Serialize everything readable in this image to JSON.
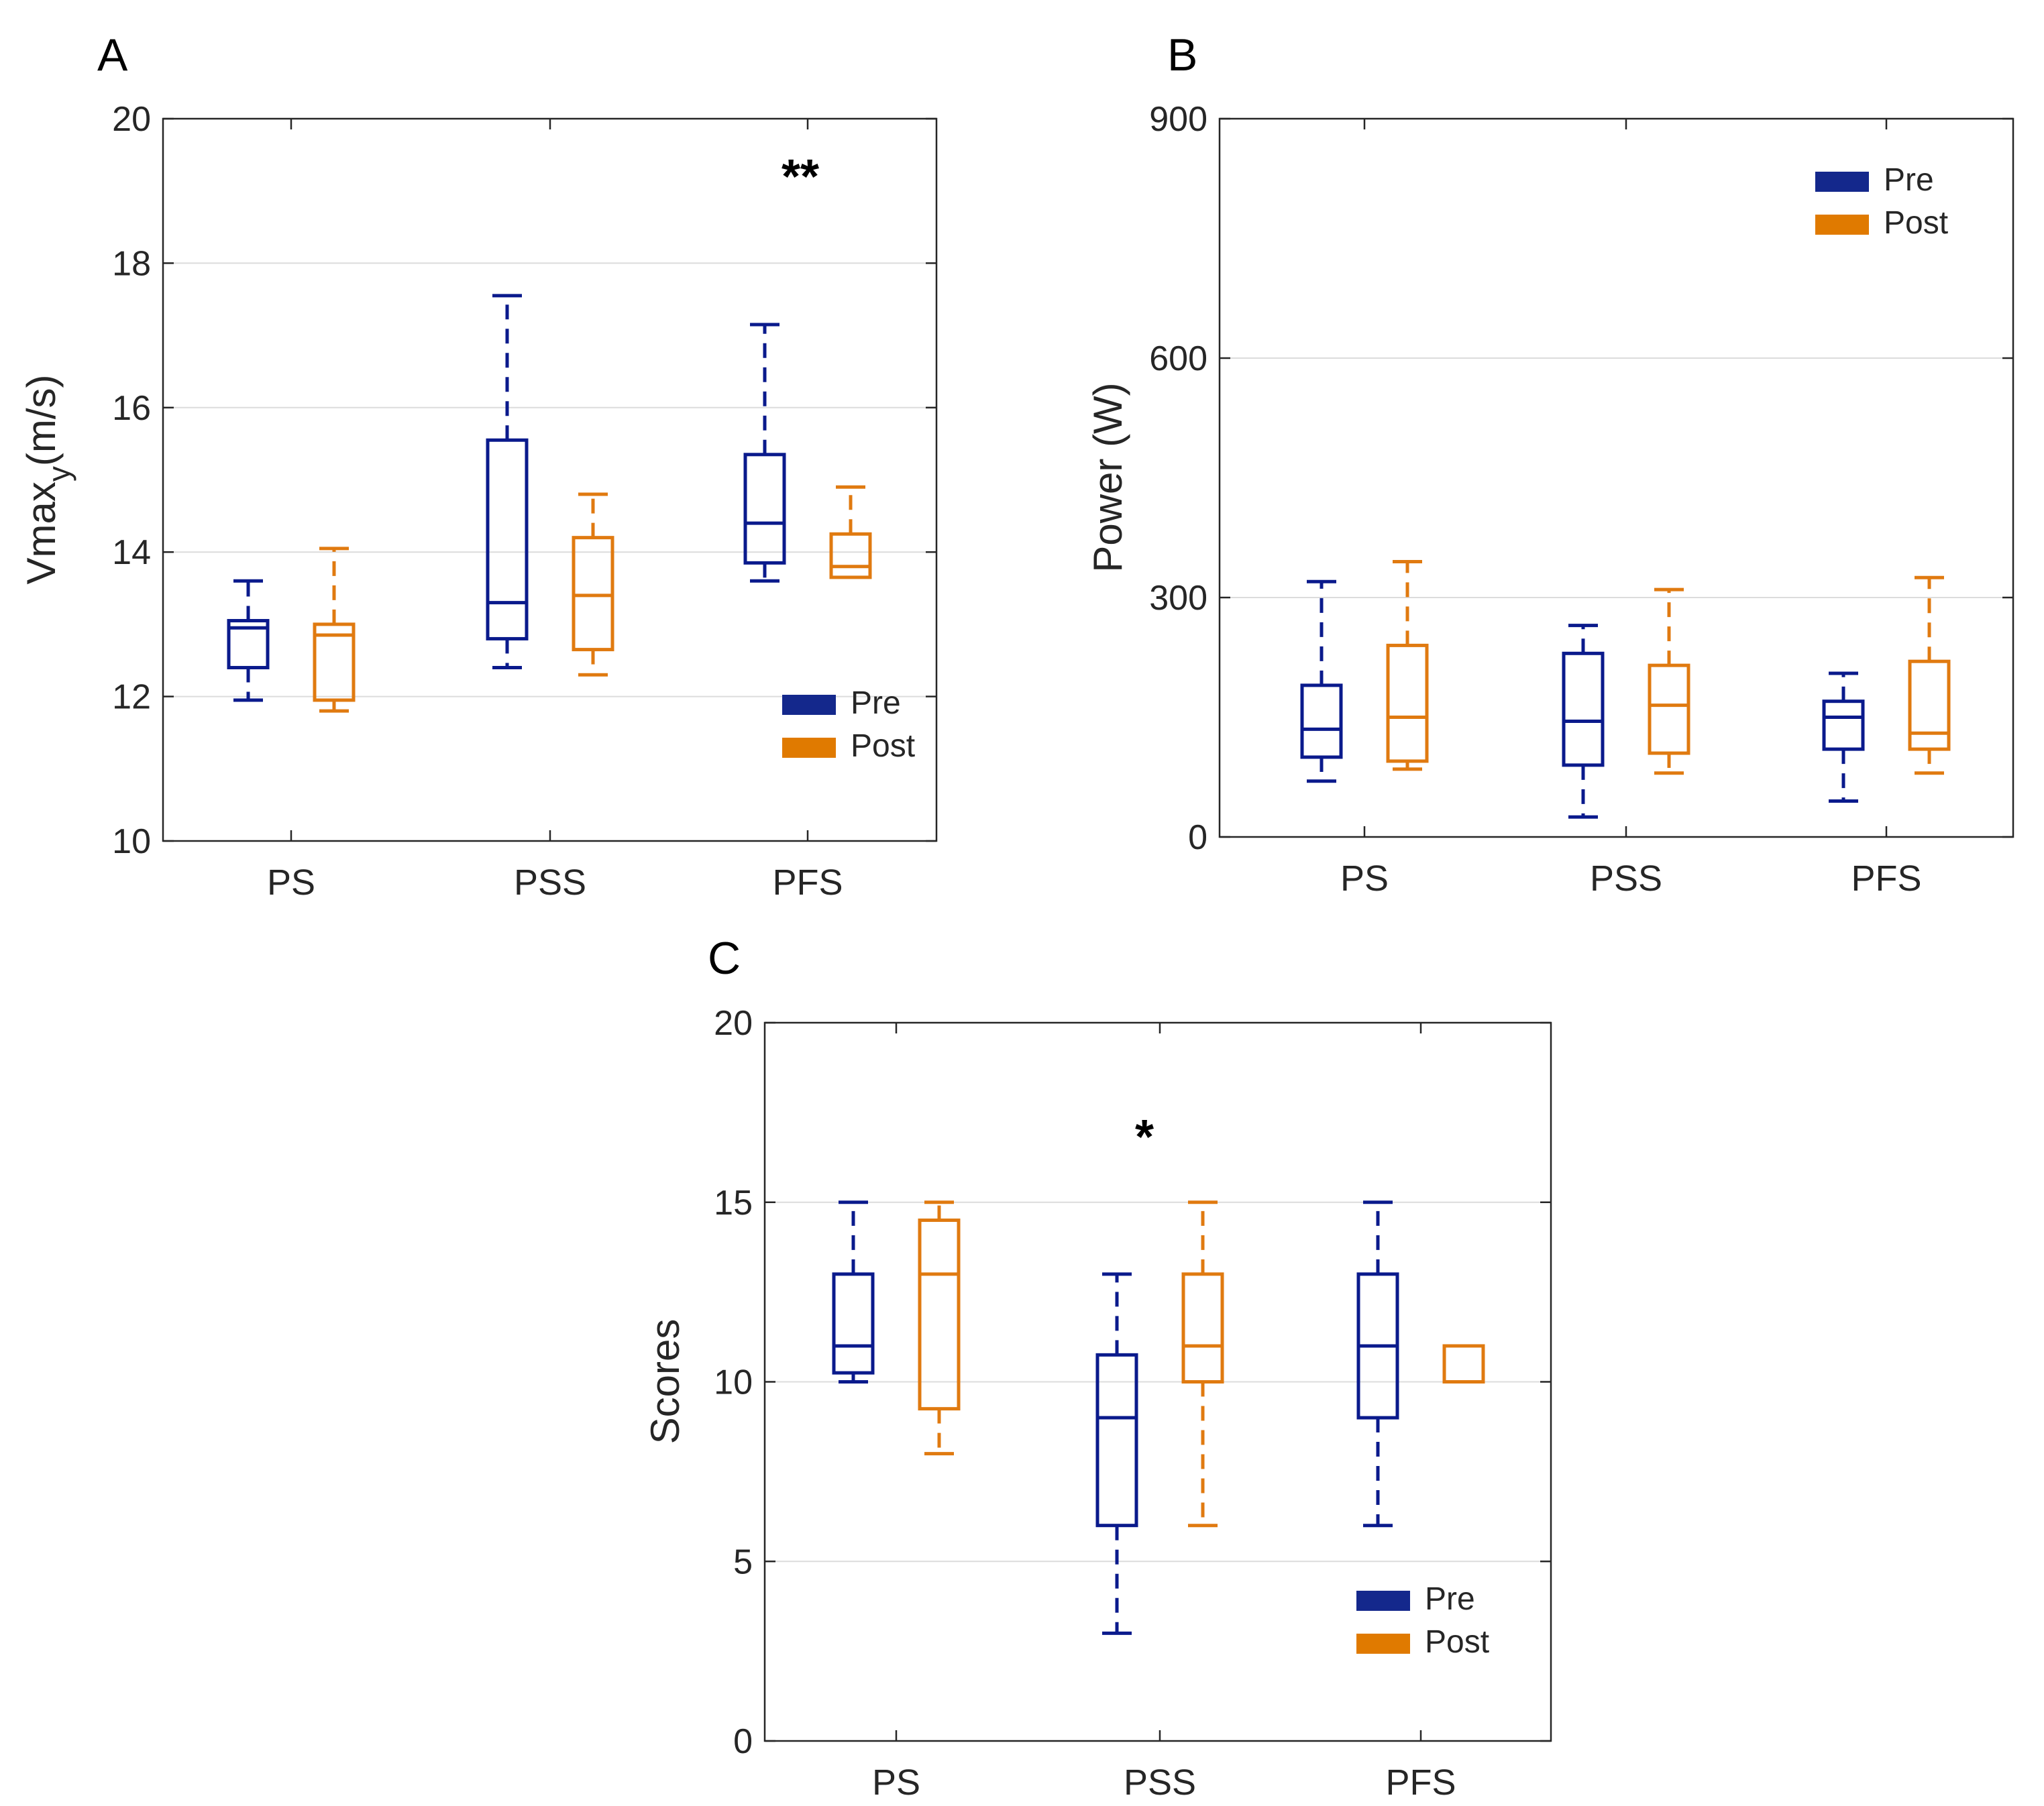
{
  "colors": {
    "pre": "#0A1A8C",
    "post": "#E07A10",
    "pre_legend": "#14288C",
    "post_legend": "#E07A00"
  },
  "chart_data": [
    {
      "type": "box",
      "panel_letter": "A",
      "title": "",
      "xlabel": "",
      "ylabel_main": "Vmax",
      "ylabel_sub": "y",
      "ylabel_unit": "(m/s)",
      "ylim": [
        10,
        20
      ],
      "yticks": [
        "10",
        "12",
        "14",
        "16",
        "18",
        "20"
      ],
      "categories": [
        "PS",
        "PSS",
        "PFS"
      ],
      "legend": [
        "Pre",
        "Post"
      ],
      "legend_location": "lower-right",
      "significance": [
        {
          "category": "PFS",
          "label": "**"
        }
      ],
      "series": [
        {
          "name": "Pre",
          "boxes": [
            {
              "min": 11.95,
              "q1": 12.4,
              "median": 12.95,
              "q3": 13.05,
              "max": 13.6
            },
            {
              "min": 12.4,
              "q1": 12.8,
              "median": 13.3,
              "q3": 15.55,
              "max": 17.55
            },
            {
              "min": 13.6,
              "q1": 13.85,
              "median": 14.4,
              "q3": 15.35,
              "max": 17.15
            }
          ]
        },
        {
          "name": "Post",
          "boxes": [
            {
              "min": 11.8,
              "q1": 11.95,
              "median": 12.85,
              "q3": 13.0,
              "max": 14.05
            },
            {
              "min": 12.3,
              "q1": 12.65,
              "median": 13.4,
              "q3": 14.2,
              "max": 14.8
            },
            {
              "min": 13.65,
              "q1": 13.65,
              "median": 13.8,
              "q3": 14.25,
              "max": 14.9
            }
          ]
        }
      ]
    },
    {
      "type": "box",
      "panel_letter": "B",
      "title": "",
      "xlabel": "",
      "ylabel": "Power (W)",
      "ylim": [
        0,
        900
      ],
      "yticks": [
        "0",
        "300",
        "600",
        "900"
      ],
      "categories": [
        "PS",
        "PSS",
        "PFS"
      ],
      "legend": [
        "Pre",
        "Post"
      ],
      "legend_location": "top-right",
      "significance": [],
      "series": [
        {
          "name": "Pre",
          "boxes": [
            {
              "min": 70,
              "q1": 100,
              "median": 135,
              "q3": 190,
              "max": 320
            },
            {
              "min": 25,
              "q1": 90,
              "median": 145,
              "q3": 230,
              "max": 265
            },
            {
              "min": 45,
              "q1": 110,
              "median": 150,
              "q3": 170,
              "max": 205
            }
          ]
        },
        {
          "name": "Post",
          "boxes": [
            {
              "min": 85,
              "q1": 95,
              "median": 150,
              "q3": 240,
              "max": 345
            },
            {
              "min": 80,
              "q1": 105,
              "median": 165,
              "q3": 215,
              "max": 310
            },
            {
              "min": 80,
              "q1": 110,
              "median": 130,
              "q3": 220,
              "max": 325
            }
          ]
        }
      ]
    },
    {
      "type": "box",
      "panel_letter": "C",
      "title": "",
      "xlabel": "",
      "ylabel": "Scores",
      "ylim": [
        0,
        20
      ],
      "yticks": [
        "0",
        "5",
        "10",
        "15",
        "20"
      ],
      "categories": [
        "PS",
        "PSS",
        "PFS"
      ],
      "legend": [
        "Pre",
        "Post"
      ],
      "legend_location": "lower-right",
      "significance": [
        {
          "category": "PSS",
          "label": "*"
        }
      ],
      "series": [
        {
          "name": "Pre",
          "boxes": [
            {
              "min": 10,
              "q1": 10.25,
              "median": 11,
              "q3": 13,
              "max": 15
            },
            {
              "min": 3,
              "q1": 6,
              "median": 9,
              "q3": 10.75,
              "max": 13
            },
            {
              "min": 6,
              "q1": 9,
              "median": 11,
              "q3": 13,
              "max": 15
            }
          ]
        },
        {
          "name": "Post",
          "boxes": [
            {
              "min": 8,
              "q1": 9.25,
              "median": 13,
              "q3": 14.5,
              "max": 15
            },
            {
              "min": 6,
              "q1": 10,
              "median": 11,
              "q3": 13,
              "max": 15
            },
            {
              "min": 10,
              "q1": 10,
              "median": 10,
              "q3": 11,
              "max": 11
            }
          ]
        }
      ]
    }
  ]
}
